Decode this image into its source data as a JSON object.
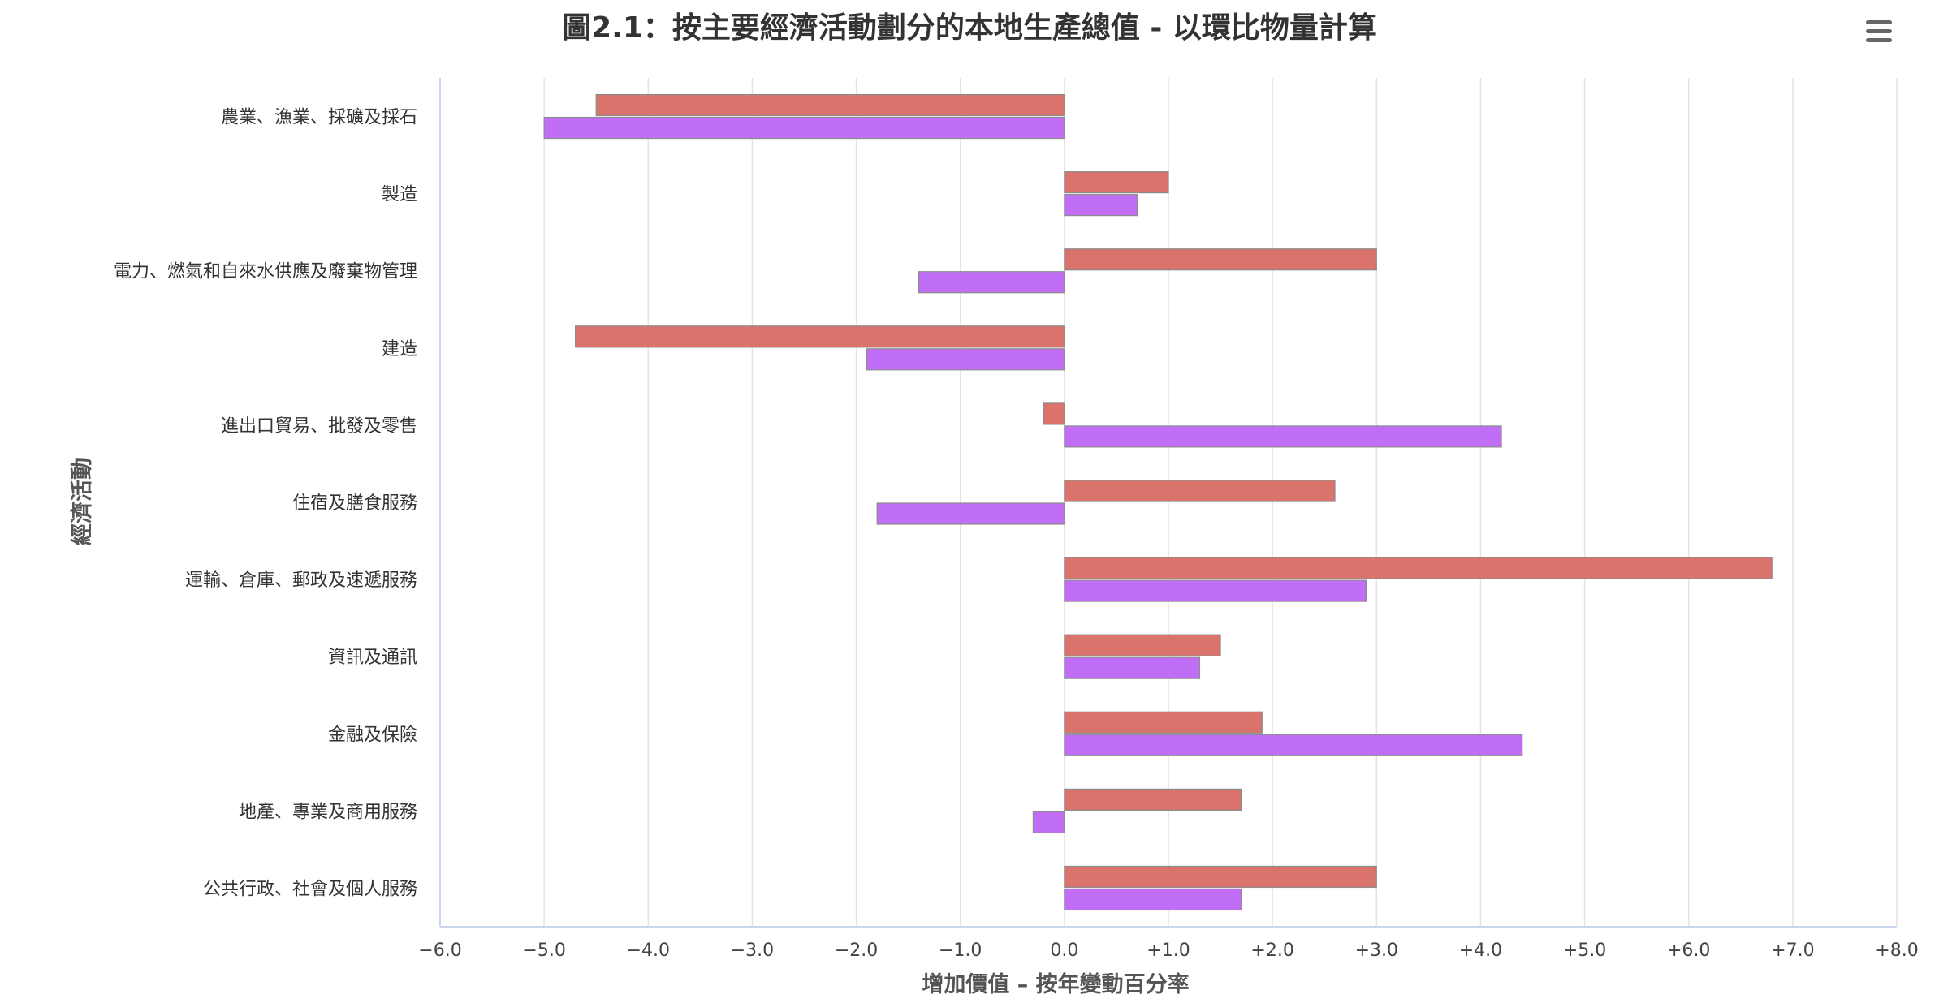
{
  "chart_data": {
    "type": "bar",
    "orientation": "horizontal",
    "title": "圖2.1：按主要經濟活動劃分的本地生產總值 - 以環比物量計算",
    "xlabel": "增加價值 – 按年變動百分率",
    "ylabel": "經濟活動",
    "categories": [
      "農業、漁業、採礦及採石",
      "製造",
      "電力、燃氣和自來水供應及廢棄物管理",
      "建造",
      "進出口貿易、批發及零售",
      "住宿及膳食服務",
      "運輸、倉庫、郵政及速遞服務",
      "資訊及通訊",
      "金融及保險",
      "地產、專業及商用服務",
      "公共行政、社會及個人服務"
    ],
    "series": [
      {
        "color": "#d9736b",
        "values": [
          -4.5,
          1.0,
          3.0,
          -4.7,
          -0.2,
          2.6,
          6.8,
          1.5,
          1.9,
          1.7,
          3.0
        ]
      },
      {
        "color": "#bf6ef5",
        "values": [
          -5.0,
          0.7,
          -1.4,
          -1.9,
          4.2,
          -1.8,
          2.9,
          1.3,
          4.4,
          -0.3,
          1.7
        ]
      }
    ],
    "xlim": [
      -6.0,
      8.0
    ],
    "xticks": [
      "−6.0",
      "−5.0",
      "−4.0",
      "−3.0",
      "−2.0",
      "−1.0",
      "0.0",
      "+1.0",
      "+2.0",
      "+3.0",
      "+4.0",
      "+5.0",
      "+6.0",
      "+7.0",
      "+8.0"
    ],
    "grid": true,
    "legend": "none"
  },
  "menu": {
    "icon": "hamburger-menu-icon"
  },
  "colors": {
    "grid": "#e3e3e3",
    "axis": "#ccd6eb",
    "bar_stroke": "#8c8c8c"
  }
}
